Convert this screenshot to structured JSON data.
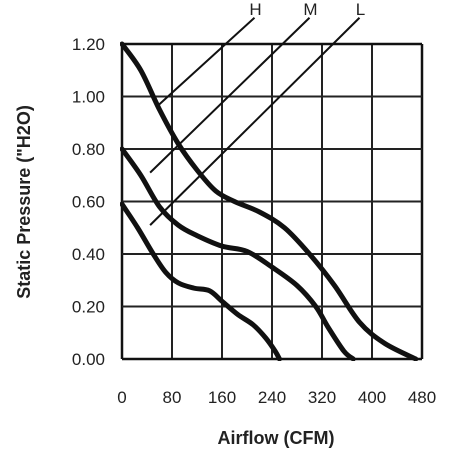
{
  "chart_data": {
    "type": "line",
    "title": "",
    "xlabel": "Airflow (CFM)",
    "ylabel": "Static Pressure  (\"H2O)",
    "xlim": [
      0,
      480
    ],
    "ylim": [
      0,
      1.2
    ],
    "grid": true,
    "x_ticks": [
      "0",
      "80",
      "160",
      "240",
      "320",
      "400",
      "480"
    ],
    "y_ticks": [
      "0.00",
      "0.20",
      "0.40",
      "0.60",
      "0.80",
      "1.00",
      "1.20"
    ],
    "series": [
      {
        "name": "H",
        "points": [
          [
            0,
            1.2
          ],
          [
            30,
            1.1
          ],
          [
            60,
            0.95
          ],
          [
            90,
            0.82
          ],
          [
            120,
            0.72
          ],
          [
            150,
            0.64
          ],
          [
            180,
            0.6
          ],
          [
            220,
            0.56
          ],
          [
            260,
            0.5
          ],
          [
            300,
            0.4
          ],
          [
            340,
            0.28
          ],
          [
            380,
            0.14
          ],
          [
            420,
            0.06
          ],
          [
            470,
            0
          ]
        ]
      },
      {
        "name": "M",
        "points": [
          [
            0,
            0.8
          ],
          [
            30,
            0.7
          ],
          [
            60,
            0.58
          ],
          [
            90,
            0.51
          ],
          [
            120,
            0.47
          ],
          [
            160,
            0.43
          ],
          [
            200,
            0.41
          ],
          [
            240,
            0.35
          ],
          [
            280,
            0.28
          ],
          [
            310,
            0.2
          ],
          [
            330,
            0.12
          ],
          [
            355,
            0.03
          ],
          [
            370,
            0
          ]
        ]
      },
      {
        "name": "L",
        "points": [
          [
            0,
            0.59
          ],
          [
            25,
            0.5
          ],
          [
            50,
            0.4
          ],
          [
            70,
            0.33
          ],
          [
            90,
            0.29
          ],
          [
            115,
            0.27
          ],
          [
            140,
            0.26
          ],
          [
            160,
            0.22
          ],
          [
            185,
            0.17
          ],
          [
            210,
            0.13
          ],
          [
            230,
            0.08
          ],
          [
            245,
            0.03
          ],
          [
            252,
            0
          ]
        ]
      }
    ],
    "speed_lines": [
      {
        "label": "H",
        "from": [
          55,
          0.96
        ],
        "to": [
          212,
          1.3
        ]
      },
      {
        "label": "M",
        "from": [
          45,
          0.71
        ],
        "to": [
          300,
          1.3
        ]
      },
      {
        "label": "L",
        "from": [
          45,
          0.51
        ],
        "to": [
          380,
          1.3
        ]
      }
    ]
  }
}
